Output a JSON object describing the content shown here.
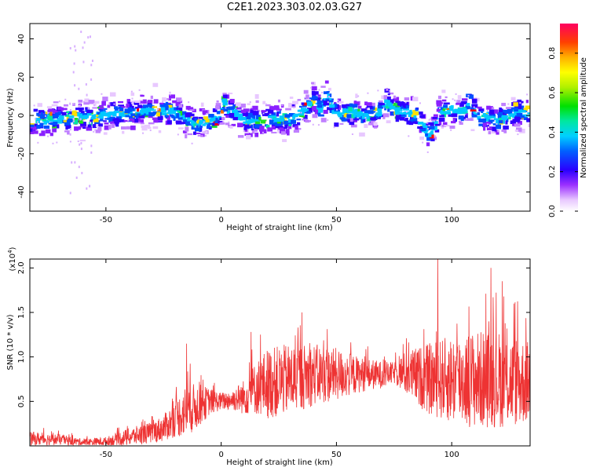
{
  "title": "C2E1.2023.303.02.03.G27",
  "chart_data": [
    {
      "type": "heatmap",
      "xlabel": "Height of straight line (km)",
      "ylabel": "Frequency (Hz)",
      "xlim": [
        -83,
        134
      ],
      "ylim": [
        -50,
        48
      ],
      "xticks": [
        -50,
        0,
        50,
        100
      ],
      "yticks": [
        -40,
        -20,
        0,
        20,
        40
      ],
      "colorbar": {
        "label": "Normalized spectral amplitude",
        "range": [
          0,
          0.95
        ],
        "ticks": [
          "0.0",
          "0.2",
          "0.4",
          "0.6",
          "0.8"
        ]
      },
      "ridge": {
        "x": [
          -83,
          -70,
          -60,
          -50,
          -40,
          -30,
          -20,
          -10,
          -5,
          0,
          1,
          3,
          6,
          10,
          20,
          30,
          38,
          40,
          43,
          46,
          50,
          55,
          60,
          65,
          70,
          72,
          75,
          80,
          85,
          90,
          92,
          95,
          100,
          105,
          108,
          112,
          115,
          120,
          125,
          130,
          134
        ],
        "f": [
          -3,
          -2,
          -1,
          0,
          1,
          3,
          2,
          -5,
          -3,
          0,
          8,
          3,
          2,
          -3,
          -2,
          -2,
          5,
          8,
          3,
          10,
          0,
          2,
          1,
          0,
          3,
          7,
          3,
          2,
          0,
          -10,
          -8,
          2,
          3,
          2,
          8,
          -2,
          0,
          -3,
          0,
          2,
          0
        ]
      }
    },
    {
      "type": "line",
      "xlabel": "Height of straight line (km)",
      "ylabel": "SNR (10 * v/v)",
      "yscale_label": "(x10",
      "yscale_exp": "4",
      "yscale_close": ")",
      "xlim": [
        -83,
        134
      ],
      "ylim": [
        0,
        2.1
      ],
      "xticks": [
        -50,
        0,
        50,
        100
      ],
      "yticks": [
        0.5,
        1.0,
        1.5,
        2.0
      ],
      "color": "#ee3333",
      "envelope": {
        "x": [
          -83,
          -70,
          -60,
          -50,
          -40,
          -30,
          -25,
          -20,
          -15,
          -10,
          -5,
          0,
          5,
          10,
          15,
          20,
          30,
          40,
          50,
          60,
          70,
          75,
          80,
          90,
          100,
          110,
          120,
          130,
          134
        ],
        "base": [
          0.08,
          0.07,
          0.04,
          0.05,
          0.1,
          0.15,
          0.2,
          0.3,
          0.4,
          0.45,
          0.5,
          0.5,
          0.52,
          0.55,
          0.65,
          0.7,
          0.75,
          0.8,
          0.8,
          0.8,
          0.8,
          0.82,
          0.82,
          0.75,
          0.75,
          0.75,
          0.75,
          0.72,
          0.72
        ],
        "amp": [
          0.08,
          0.06,
          0.04,
          0.05,
          0.1,
          0.12,
          0.15,
          0.2,
          0.3,
          0.25,
          0.15,
          0.1,
          0.12,
          0.2,
          0.3,
          0.4,
          0.4,
          0.35,
          0.3,
          0.2,
          0.15,
          0.12,
          0.25,
          0.4,
          0.5,
          0.55,
          0.55,
          0.5,
          0.45
        ]
      },
      "peaks": [
        {
          "x": -15,
          "y": 1.15
        },
        {
          "x": 13,
          "y": 1.28
        },
        {
          "x": 35,
          "y": 1.5
        },
        {
          "x": 94,
          "y": 2.1
        },
        {
          "x": 117,
          "y": 2.0
        },
        {
          "x": 122,
          "y": 1.85
        },
        {
          "x": 127,
          "y": 1.6
        }
      ]
    }
  ]
}
